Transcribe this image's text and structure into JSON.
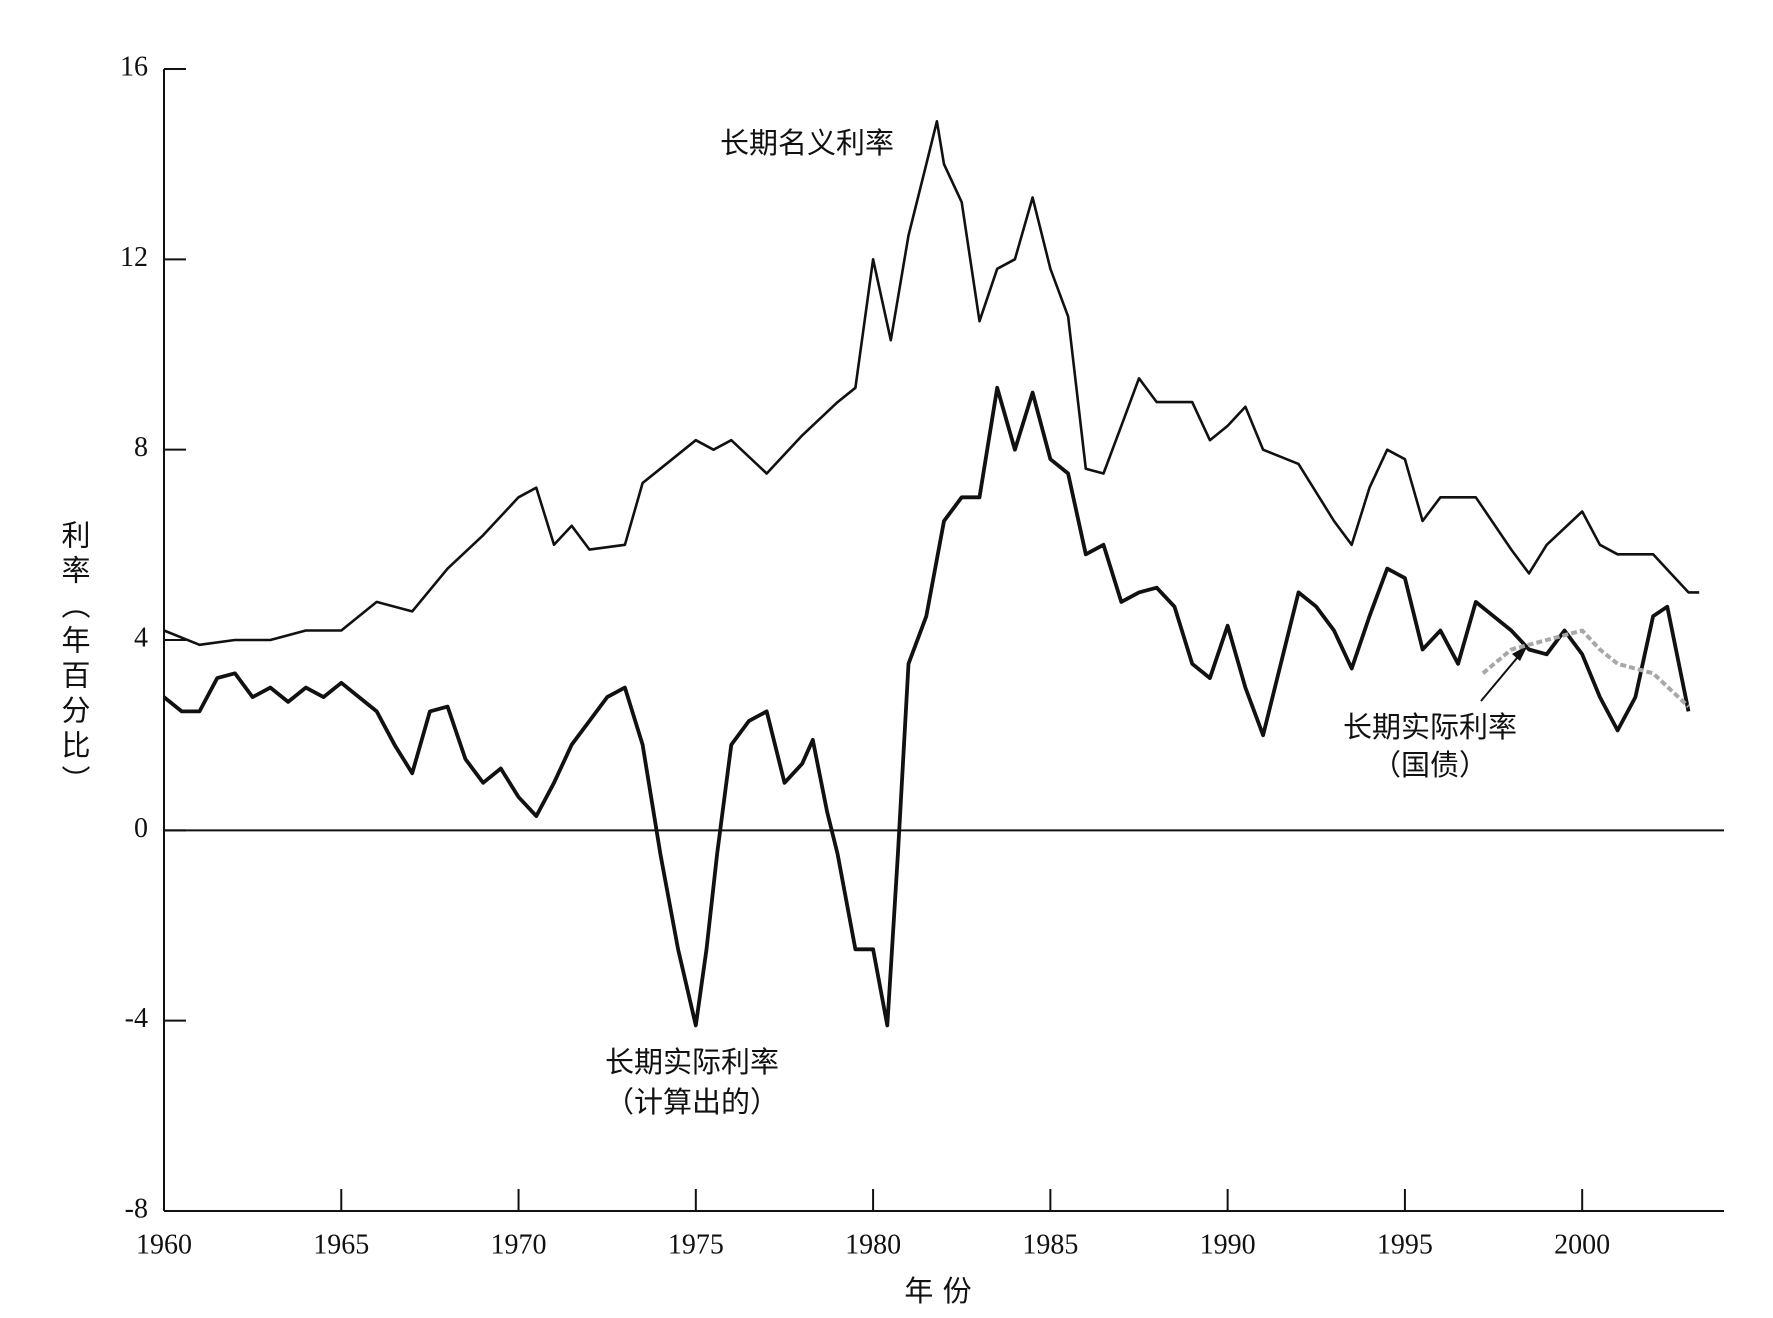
{
  "chart_data": {
    "type": "line",
    "x_label": "年 份",
    "y_label": "利率（年百分比）",
    "annotations": [
      "长期名义利率",
      "长期实际利率",
      "（计算出的）",
      "长期实际利率",
      "（国债）"
    ],
    "xlim": [
      1960,
      2004
    ],
    "xticks": [
      1960,
      1965,
      1970,
      1975,
      1980,
      1985,
      1990,
      1995,
      2000
    ],
    "ylim": [
      -8,
      16
    ],
    "yticks": [
      -8,
      -4,
      0,
      4,
      8,
      12,
      16
    ],
    "zero_line": true,
    "series": [
      {
        "name": "长期名义利率",
        "color": "#111111",
        "x": [
          1960,
          1961,
          1962,
          1963,
          1964,
          1965,
          1966,
          1967,
          1968,
          1969,
          1970,
          1970.5,
          1971,
          1971.5,
          1972,
          1973,
          1973.5,
          1974,
          1975,
          1975.5,
          1976,
          1977,
          1978,
          1979,
          1979.5,
          1980,
          1980.5,
          1981,
          1981.5,
          1981.8,
          1982,
          1982.5,
          1983,
          1983.5,
          1984,
          1984.5,
          1985,
          1985.5,
          1986,
          1986.5,
          1987,
          1987.5,
          1988,
          1989,
          1989.5,
          1990,
          1990.5,
          1991,
          1992,
          1993,
          1993.5,
          1994,
          1994.5,
          1995,
          1995.5,
          1996,
          1997,
          1998,
          1998.5,
          1999,
          2000,
          2000.5,
          2001,
          2002,
          2002.5,
          2003,
          2003.3
        ],
        "values": [
          4.2,
          3.9,
          4.0,
          4.0,
          4.2,
          4.2,
          4.8,
          4.6,
          5.5,
          6.2,
          7.0,
          7.2,
          6.0,
          6.4,
          5.9,
          6.0,
          7.3,
          7.6,
          8.2,
          8.0,
          8.2,
          7.5,
          8.3,
          9.0,
          9.3,
          12.0,
          10.3,
          12.5,
          14.0,
          14.9,
          14.0,
          13.2,
          10.7,
          11.8,
          12.0,
          13.3,
          11.8,
          10.8,
          7.6,
          7.5,
          8.5,
          9.5,
          9.0,
          9.0,
          8.2,
          8.5,
          8.9,
          8.0,
          7.7,
          6.5,
          6.0,
          7.2,
          8.0,
          7.8,
          6.5,
          7.0,
          7.0,
          5.9,
          5.4,
          6.0,
          6.7,
          6.0,
          5.8,
          5.8,
          5.4,
          5.0,
          5.0
        ]
      },
      {
        "name": "长期实际利率（计算出的）",
        "color": "#111111",
        "x": [
          1960,
          1960.5,
          1961,
          1961.5,
          1962,
          1962.5,
          1963,
          1963.5,
          1964,
          1964.5,
          1965,
          1965.5,
          1966,
          1966.5,
          1967,
          1967.5,
          1968,
          1968.5,
          1969,
          1969.5,
          1970,
          1970.5,
          1971,
          1971.5,
          1972,
          1972.5,
          1973,
          1973.5,
          1974,
          1974.5,
          1975,
          1975.3,
          1975.6,
          1976,
          1976.5,
          1977,
          1977.5,
          1978,
          1978.3,
          1978.7,
          1979,
          1979.5,
          1980,
          1980.4,
          1980.7,
          1981,
          1981.5,
          1982,
          1982.5,
          1983,
          1983.5,
          1984,
          1984.5,
          1985,
          1985.5,
          1986,
          1986.5,
          1987,
          1987.5,
          1988,
          1988.5,
          1989,
          1989.5,
          1990,
          1990.5,
          1991,
          1991.5,
          1992,
          1992.5,
          1993,
          1993.5,
          1994,
          1994.5,
          1995,
          1995.5,
          1996,
          1996.5,
          1997,
          1997.5,
          1998,
          1998.5,
          1999,
          1999.5,
          2000,
          2000.5,
          2001,
          2001.5,
          2002,
          2002.4,
          2003
        ],
        "values": [
          2.8,
          2.5,
          2.5,
          3.2,
          3.3,
          2.8,
          3.0,
          2.7,
          3.0,
          2.8,
          3.1,
          2.8,
          2.5,
          1.8,
          1.2,
          2.5,
          2.6,
          1.5,
          1.0,
          1.3,
          0.7,
          0.3,
          1.0,
          1.8,
          2.3,
          2.8,
          3.0,
          1.8,
          -0.5,
          -2.5,
          -4.1,
          -2.5,
          -0.5,
          1.8,
          2.3,
          2.5,
          1.0,
          1.4,
          1.9,
          0.4,
          -0.5,
          -2.5,
          -2.5,
          -4.1,
          -0.5,
          3.5,
          4.5,
          6.5,
          7.0,
          7.0,
          9.3,
          8.0,
          9.2,
          7.8,
          7.5,
          5.8,
          6.0,
          4.8,
          5.0,
          5.1,
          4.7,
          3.5,
          3.2,
          4.3,
          3.0,
          2.0,
          3.5,
          5.0,
          4.7,
          4.2,
          3.4,
          4.5,
          5.5,
          5.3,
          3.8,
          4.2,
          3.5,
          4.8,
          4.5,
          4.2,
          3.8,
          3.7,
          4.2,
          3.7,
          2.8,
          2.1,
          2.8,
          4.5,
          4.7,
          2.5
        ]
      },
      {
        "name": "长期实际利率（国债）",
        "color": "#a8a8a8",
        "dashed": true,
        "x": [
          1997.2,
          1998,
          1999,
          2000,
          2000.5,
          2001,
          2002,
          2003
        ],
        "values": [
          3.3,
          3.8,
          4.0,
          4.2,
          3.8,
          3.5,
          3.3,
          2.6
        ]
      }
    ]
  }
}
